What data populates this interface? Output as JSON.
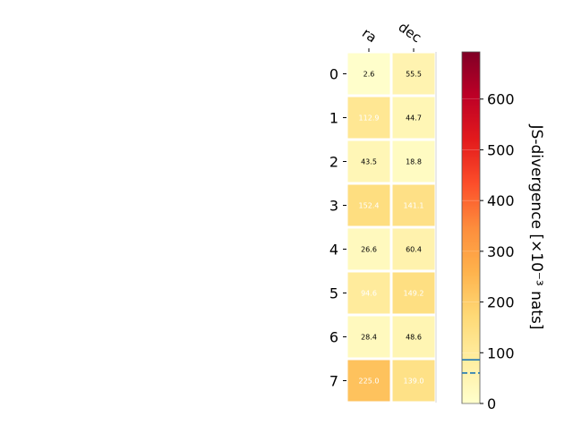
{
  "chart_data": {
    "type": "heatmap",
    "title": "",
    "columns": [
      "ra",
      "dec"
    ],
    "rows": [
      "0",
      "1",
      "2",
      "3",
      "4",
      "5",
      "6",
      "7"
    ],
    "values": [
      [
        2.6,
        55.5
      ],
      [
        112.9,
        44.7
      ],
      [
        43.5,
        18.8
      ],
      [
        152.4,
        141.1
      ],
      [
        26.6,
        60.4
      ],
      [
        94.6,
        149.2
      ],
      [
        28.4,
        48.6
      ],
      [
        225.0,
        139.0
      ]
    ],
    "cell_labels": [
      [
        "2.6",
        "55.5"
      ],
      [
        "112.9",
        "44.7"
      ],
      [
        "43.5",
        "18.8"
      ],
      [
        "152.4",
        "141.1"
      ],
      [
        "26.6",
        "60.4"
      ],
      [
        "94.6",
        "149.2"
      ],
      [
        "28.4",
        "48.6"
      ],
      [
        "225.0",
        "139.0"
      ]
    ],
    "colorbar": {
      "label": "JS-divergence [×10⁻³ nats]",
      "range": [
        0,
        693
      ],
      "ticks": [
        0,
        100,
        200,
        300,
        400,
        500,
        600
      ],
      "tick_labels": [
        "0",
        "100",
        "200",
        "300",
        "400",
        "500",
        "600"
      ],
      "colormap": "YlOrRd",
      "reference_lines": [
        {
          "value": 86,
          "style": "solid",
          "color": "#1f77b4"
        },
        {
          "value": 60,
          "style": "dashed",
          "color": "#1f77b4"
        }
      ]
    }
  }
}
